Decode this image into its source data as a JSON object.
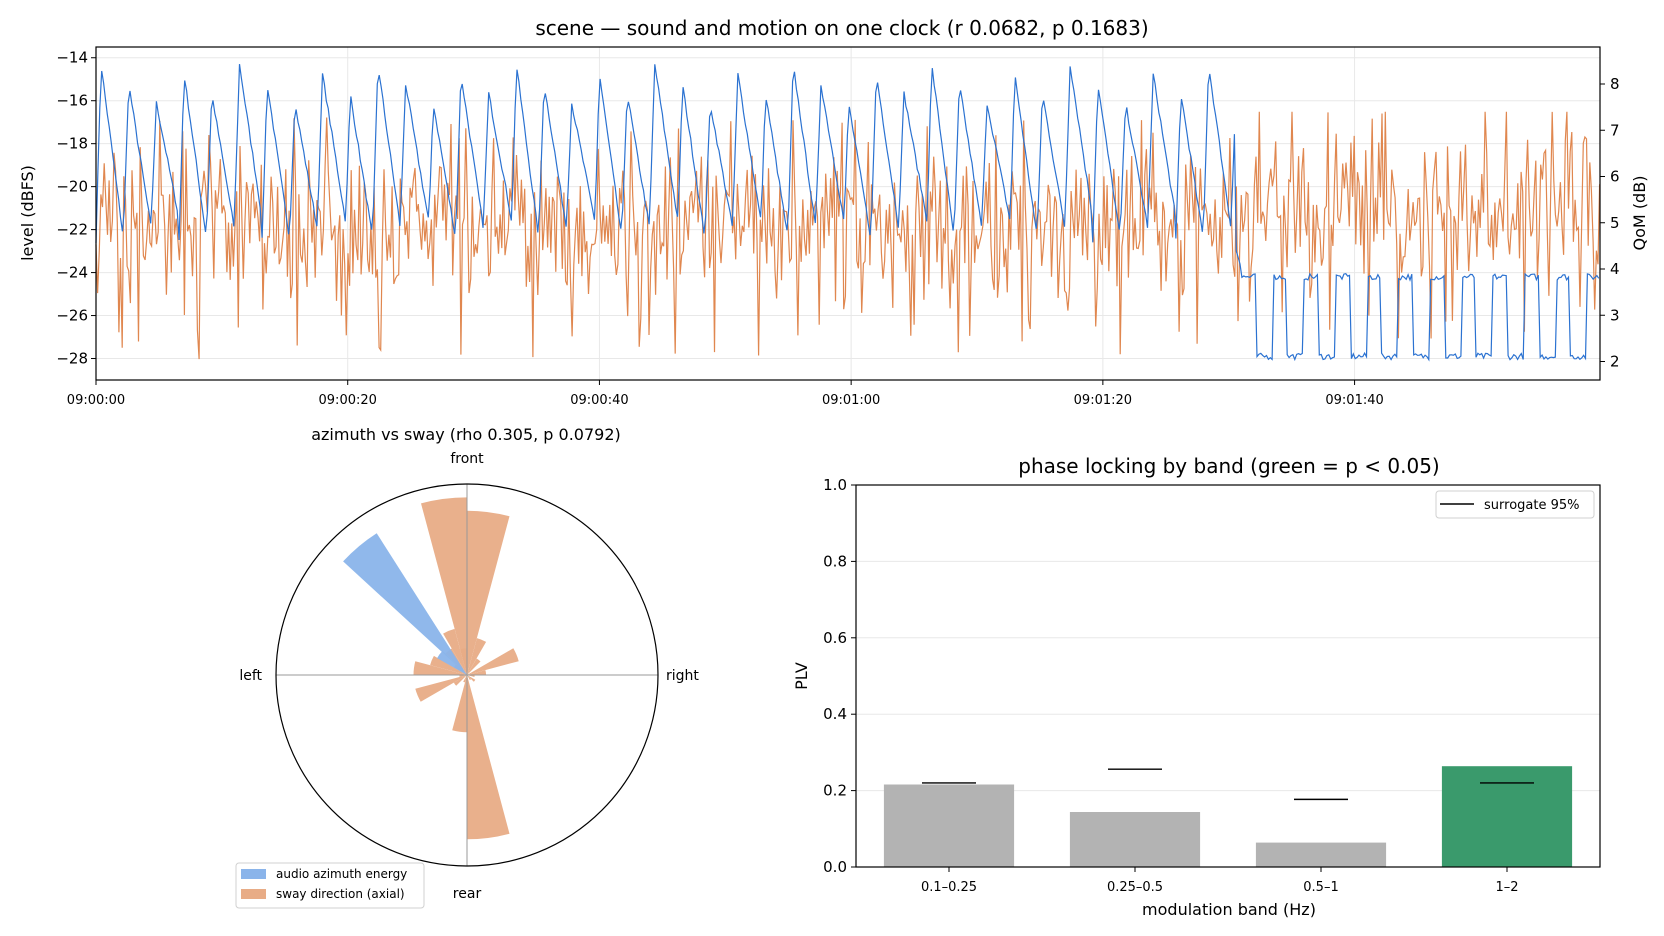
{
  "colors": {
    "audio_level": "#2b72d1",
    "qom": "#e0874f",
    "azimuth_fill": "#8ab4ea",
    "sway_fill": "#e8ac86",
    "bar_default": "#b3b3b3",
    "bar_significant": "#3a9a6c",
    "surrogate_line": "#000000",
    "grid": "#e8e8e8"
  },
  "chart_data": [
    {
      "type": "line",
      "title": "scene — sound and motion on one clock (r 0.0682, p 0.1683)",
      "ylabel": "level (dBFS)",
      "y2label": "QoM (dB)",
      "xlim_seconds": [
        0,
        119.5
      ],
      "ylim": [
        -29,
        -13.5
      ],
      "y2lim": [
        1.6,
        8.8
      ],
      "x_ticks": [
        "09:00:00",
        "09:00:20",
        "09:00:40",
        "09:01:00",
        "09:01:20",
        "09:01:40"
      ],
      "y_ticks": [
        -14,
        -16,
        -18,
        -20,
        -22,
        -24,
        -26,
        -28
      ],
      "y2_ticks": [
        2,
        3,
        4,
        5,
        6,
        7,
        8
      ],
      "grid": true,
      "series": [
        {
          "axis": "left",
          "description": "sawtooth level: 2.2 s period, peaks ~-14 to -16 dBFS, troughs ~-20 to -23 dBFS until 09:01:30, then square wave between -24.2 and -28 dBFS",
          "sawtooth": {
            "start": 0,
            "end": 90.5,
            "period": 2.2,
            "peak": -14.3,
            "trough": -22.5
          },
          "square": {
            "start": 91,
            "end": 119.5,
            "period": 2.5,
            "high": -24.2,
            "low": -27.9
          }
        },
        {
          "axis": "right",
          "description": "noisy QoM: mean ~4.9 dB, range ~2 to 7.4 dB; mean ~5.3 dB after 09:01:30",
          "mean": 4.9,
          "mean_after_switch": 5.3,
          "min": 2.05,
          "max": 7.4,
          "switch_time": 90.5
        }
      ]
    },
    {
      "type": "polar-histogram",
      "title": "azimuth vs sway (rho 0.305, p 0.0792)",
      "direction_labels": {
        "front": "front",
        "right": "right",
        "rear": "rear",
        "left": "left"
      },
      "max_radius": 1.0,
      "series": [
        {
          "name": "audio azimuth energy",
          "bins": [
            {
              "center_deg": -40,
              "width_deg": 15,
              "value": 0.88
            },
            {
              "center_deg": -53,
              "width_deg": 15,
              "value": 0.18
            }
          ]
        },
        {
          "name": "sway direction (axial)",
          "bins": [
            {
              "center_deg": -7.5,
              "width_deg": 15,
              "value": 0.93
            },
            {
              "center_deg": 7.5,
              "width_deg": 15,
              "value": 0.86
            },
            {
              "center_deg": 22.5,
              "width_deg": 15,
              "value": 0.2
            },
            {
              "center_deg": 37.5,
              "width_deg": 15,
              "value": 0.1
            },
            {
              "center_deg": 67.5,
              "width_deg": 15,
              "value": 0.28
            },
            {
              "center_deg": 82.5,
              "width_deg": 15,
              "value": 0.1
            },
            {
              "center_deg": 97.5,
              "width_deg": 15,
              "value": 0.04
            },
            {
              "center_deg": 127.5,
              "width_deg": 15,
              "value": 0.05
            },
            {
              "center_deg": 142.5,
              "width_deg": 15,
              "value": 0.03
            },
            {
              "center_deg": 172.5,
              "width_deg": 15,
              "value": 0.86
            },
            {
              "center_deg": 187.5,
              "width_deg": 15,
              "value": 0.3
            },
            {
              "center_deg": 202.5,
              "width_deg": 15,
              "value": 0.04
            },
            {
              "center_deg": 232.5,
              "width_deg": 15,
              "value": 0.08
            },
            {
              "center_deg": 247.5,
              "width_deg": 15,
              "value": 0.28
            },
            {
              "center_deg": 262.5,
              "width_deg": 15,
              "value": 0.04
            },
            {
              "center_deg": 277.5,
              "width_deg": 15,
              "value": 0.28
            },
            {
              "center_deg": 292.5,
              "width_deg": 15,
              "value": 0.2
            },
            {
              "center_deg": 307.5,
              "width_deg": 15,
              "value": 0.08
            },
            {
              "center_deg": 322.5,
              "width_deg": 15,
              "value": 0.16
            },
            {
              "center_deg": 337.5,
              "width_deg": 15,
              "value": 0.25
            },
            {
              "center_deg": 352.5,
              "width_deg": 15,
              "value": 0.14
            }
          ]
        }
      ],
      "legend": [
        "audio azimuth energy",
        "sway direction (axial)"
      ],
      "legend_placement": "bottom-left"
    },
    {
      "type": "bar",
      "title": "phase locking by band (green = p < 0.05)",
      "xlabel": "modulation band (Hz)",
      "ylabel": "PLV",
      "ylim": [
        0,
        1
      ],
      "y_ticks": [
        "0.0",
        "0.2",
        "0.4",
        "0.6",
        "0.8",
        "1.0"
      ],
      "categories": [
        "0.1–0.25",
        "0.25–0.5",
        "0.5–1",
        "1–2"
      ],
      "values": [
        0.216,
        0.144,
        0.064,
        0.264
      ],
      "surrogate_95": [
        0.22,
        0.256,
        0.177,
        0.22
      ],
      "significant": [
        false,
        false,
        false,
        true
      ],
      "legend": [
        "surrogate 95%"
      ],
      "legend_placement": "top-right",
      "grid": true
    }
  ]
}
